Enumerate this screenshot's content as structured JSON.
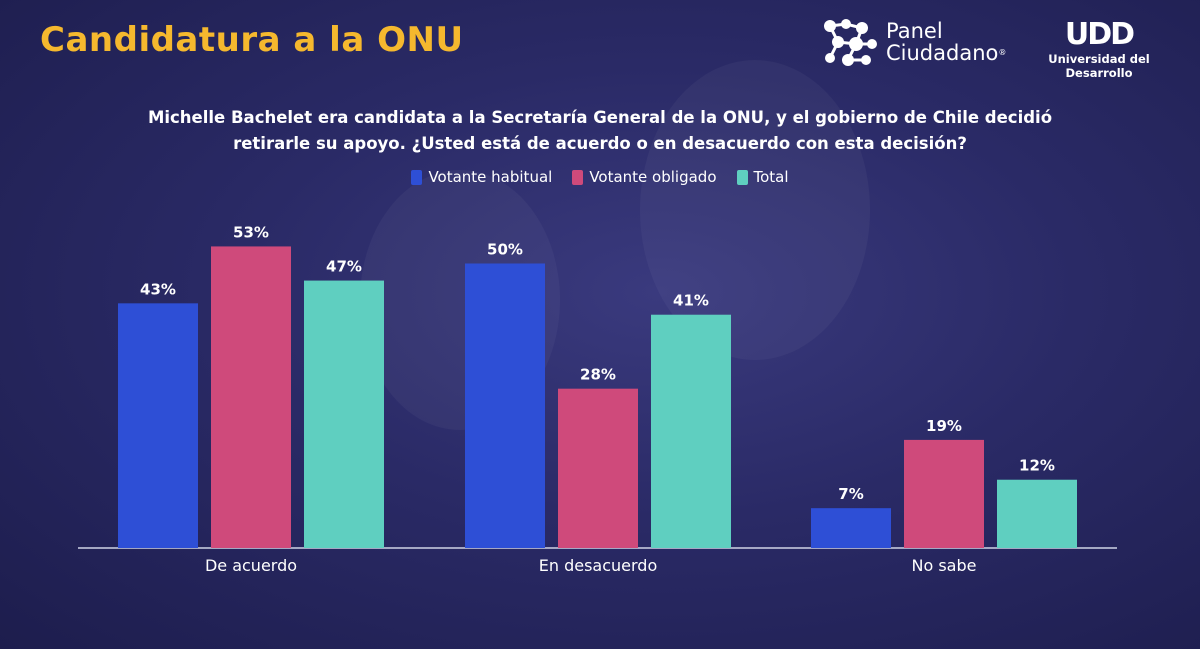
{
  "header": {
    "title": "Candidatura a la ONU",
    "panel_logo_line1": "Panel",
    "panel_logo_line2": "Ciudadano",
    "panel_logo_mark": "®",
    "udd_logo_mark": "UDD",
    "udd_logo_text": "Universidad del Desarrollo"
  },
  "colors": {
    "title": "#f5b82e",
    "habitual": "#2e4fd6",
    "obligado": "#cf4a7b",
    "total": "#5fcfc0",
    "axis": "#cfd3e6",
    "text": "#ffffff"
  },
  "chart_data": {
    "type": "bar",
    "title": "Michelle Bachelet era candidata a la Secretaría General de la ONU, y el gobierno de Chile decidió retirarle su apoyo. ¿Usted está de acuerdo o en desacuerdo con esta decisión?",
    "categories": [
      "De acuerdo",
      "En desacuerdo",
      "No sabe"
    ],
    "series": [
      {
        "name": "Votante habitual",
        "values": [
          43,
          50,
          7
        ],
        "labels": [
          "43%",
          "50%",
          "7%"
        ],
        "color": "#2e4fd6"
      },
      {
        "name": "Votante obligado",
        "values": [
          53,
          28,
          19
        ],
        "labels": [
          "53%",
          "28%",
          "19%"
        ],
        "color": "#cf4a7b"
      },
      {
        "name": "Total",
        "values": [
          47,
          41,
          12
        ],
        "labels": [
          "47%",
          "41%",
          "12%"
        ],
        "color": "#5fcfc0"
      }
    ],
    "unit": "%",
    "ylim": [
      0,
      60
    ],
    "grid": false,
    "legend": "top-center",
    "xlabel": "",
    "ylabel": ""
  }
}
